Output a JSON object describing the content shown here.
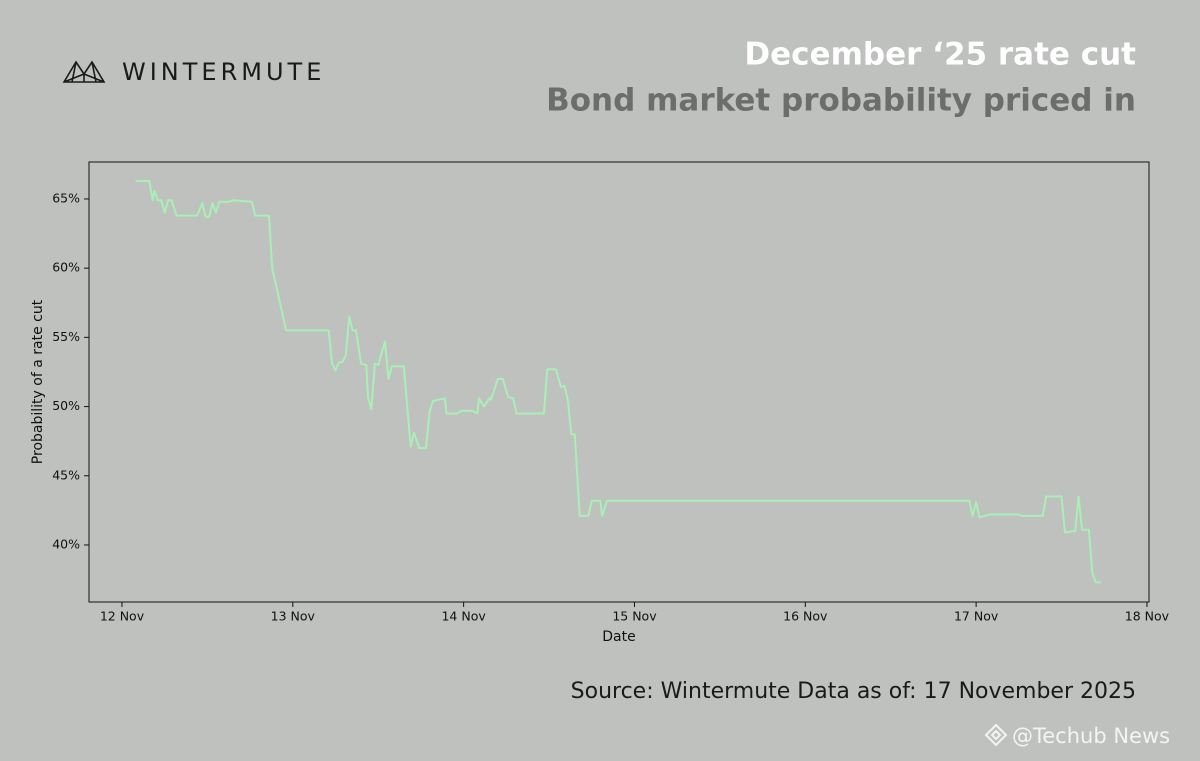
{
  "brand": "WINTERMUTE",
  "source": "Source: Wintermute  Data as of: 17 November 2025",
  "watermark": "@Techub News",
  "chart_data": {
    "type": "line",
    "title": "December ‘25 rate cut",
    "subtitle": "Bond market probability priced in",
    "xlabel": "Date",
    "ylabel": "Probability of a rate cut",
    "color": "#a9efb6",
    "xlim": [
      -0.193,
      6.012
    ],
    "xticks": [
      {
        "value": 0,
        "label": "12 Nov"
      },
      {
        "value": 1,
        "label": "13 Nov"
      },
      {
        "value": 2,
        "label": "14 Nov"
      },
      {
        "value": 3,
        "label": "15 Nov"
      },
      {
        "value": 4,
        "label": "16 Nov"
      },
      {
        "value": 5,
        "label": "17 Nov"
      },
      {
        "value": 6,
        "label": "18 Nov"
      }
    ],
    "ylim": [
      35.88,
      67.67
    ],
    "yticks": [
      {
        "value": 40,
        "label": "40%"
      },
      {
        "value": 45,
        "label": "45%"
      },
      {
        "value": 50,
        "label": "50%"
      },
      {
        "value": 55,
        "label": "55%"
      },
      {
        "value": 60,
        "label": "60%"
      },
      {
        "value": 65,
        "label": "65%"
      }
    ],
    "x": [
      0.08,
      0.16,
      0.18,
      0.19,
      0.21,
      0.23,
      0.25,
      0.27,
      0.29,
      0.32,
      0.44,
      0.47,
      0.49,
      0.51,
      0.53,
      0.55,
      0.57,
      0.63,
      0.65,
      0.76,
      0.78,
      0.86,
      0.88,
      0.9,
      0.96,
      1.21,
      1.23,
      1.25,
      1.27,
      1.29,
      1.31,
      1.33,
      1.35,
      1.37,
      1.4,
      1.43,
      1.44,
      1.46,
      1.48,
      1.5,
      1.54,
      1.56,
      1.58,
      1.65,
      1.69,
      1.71,
      1.74,
      1.78,
      1.8,
      1.82,
      1.89,
      1.9,
      1.96,
      1.99,
      2.05,
      2.08,
      2.09,
      2.12,
      2.15,
      2.16,
      2.2,
      2.23,
      2.26,
      2.29,
      2.31,
      2.47,
      2.49,
      2.54,
      2.57,
      2.59,
      2.61,
      2.63,
      2.65,
      2.68,
      2.73,
      2.75,
      2.8,
      2.81,
      2.84,
      4.96,
      4.98,
      5.0,
      5.02,
      5.08,
      5.25,
      5.27,
      5.39,
      5.41,
      5.5,
      5.52,
      5.57,
      5.58,
      5.6,
      5.62,
      5.66,
      5.68,
      5.7,
      5.73
    ],
    "values": [
      66.3,
      66.3,
      64.9,
      65.6,
      64.9,
      64.9,
      64.0,
      64.9,
      64.9,
      63.8,
      63.8,
      64.7,
      63.7,
      63.7,
      64.7,
      64.0,
      64.8,
      64.8,
      64.9,
      64.8,
      63.8,
      63.8,
      59.9,
      58.9,
      55.5,
      55.5,
      53.1,
      52.6,
      53.2,
      53.2,
      53.7,
      56.5,
      55.5,
      55.5,
      53.1,
      53.0,
      50.7,
      49.8,
      53.1,
      53.0,
      54.7,
      52.0,
      52.9,
      52.9,
      47.1,
      48.1,
      47.0,
      47.0,
      49.6,
      50.4,
      50.6,
      49.5,
      49.5,
      49.7,
      49.7,
      49.5,
      50.6,
      50.0,
      50.6,
      50.5,
      52.0,
      52.0,
      50.7,
      50.6,
      49.5,
      49.5,
      52.7,
      52.7,
      51.4,
      51.5,
      50.5,
      48.0,
      48.0,
      42.1,
      42.1,
      43.2,
      43.2,
      42.1,
      43.2,
      43.2,
      42.1,
      43.1,
      42.0,
      42.2,
      42.2,
      42.1,
      42.1,
      43.5,
      43.5,
      40.9,
      41.0,
      41.0,
      43.5,
      41.1,
      41.1,
      38.0,
      37.3,
      37.3
    ]
  }
}
